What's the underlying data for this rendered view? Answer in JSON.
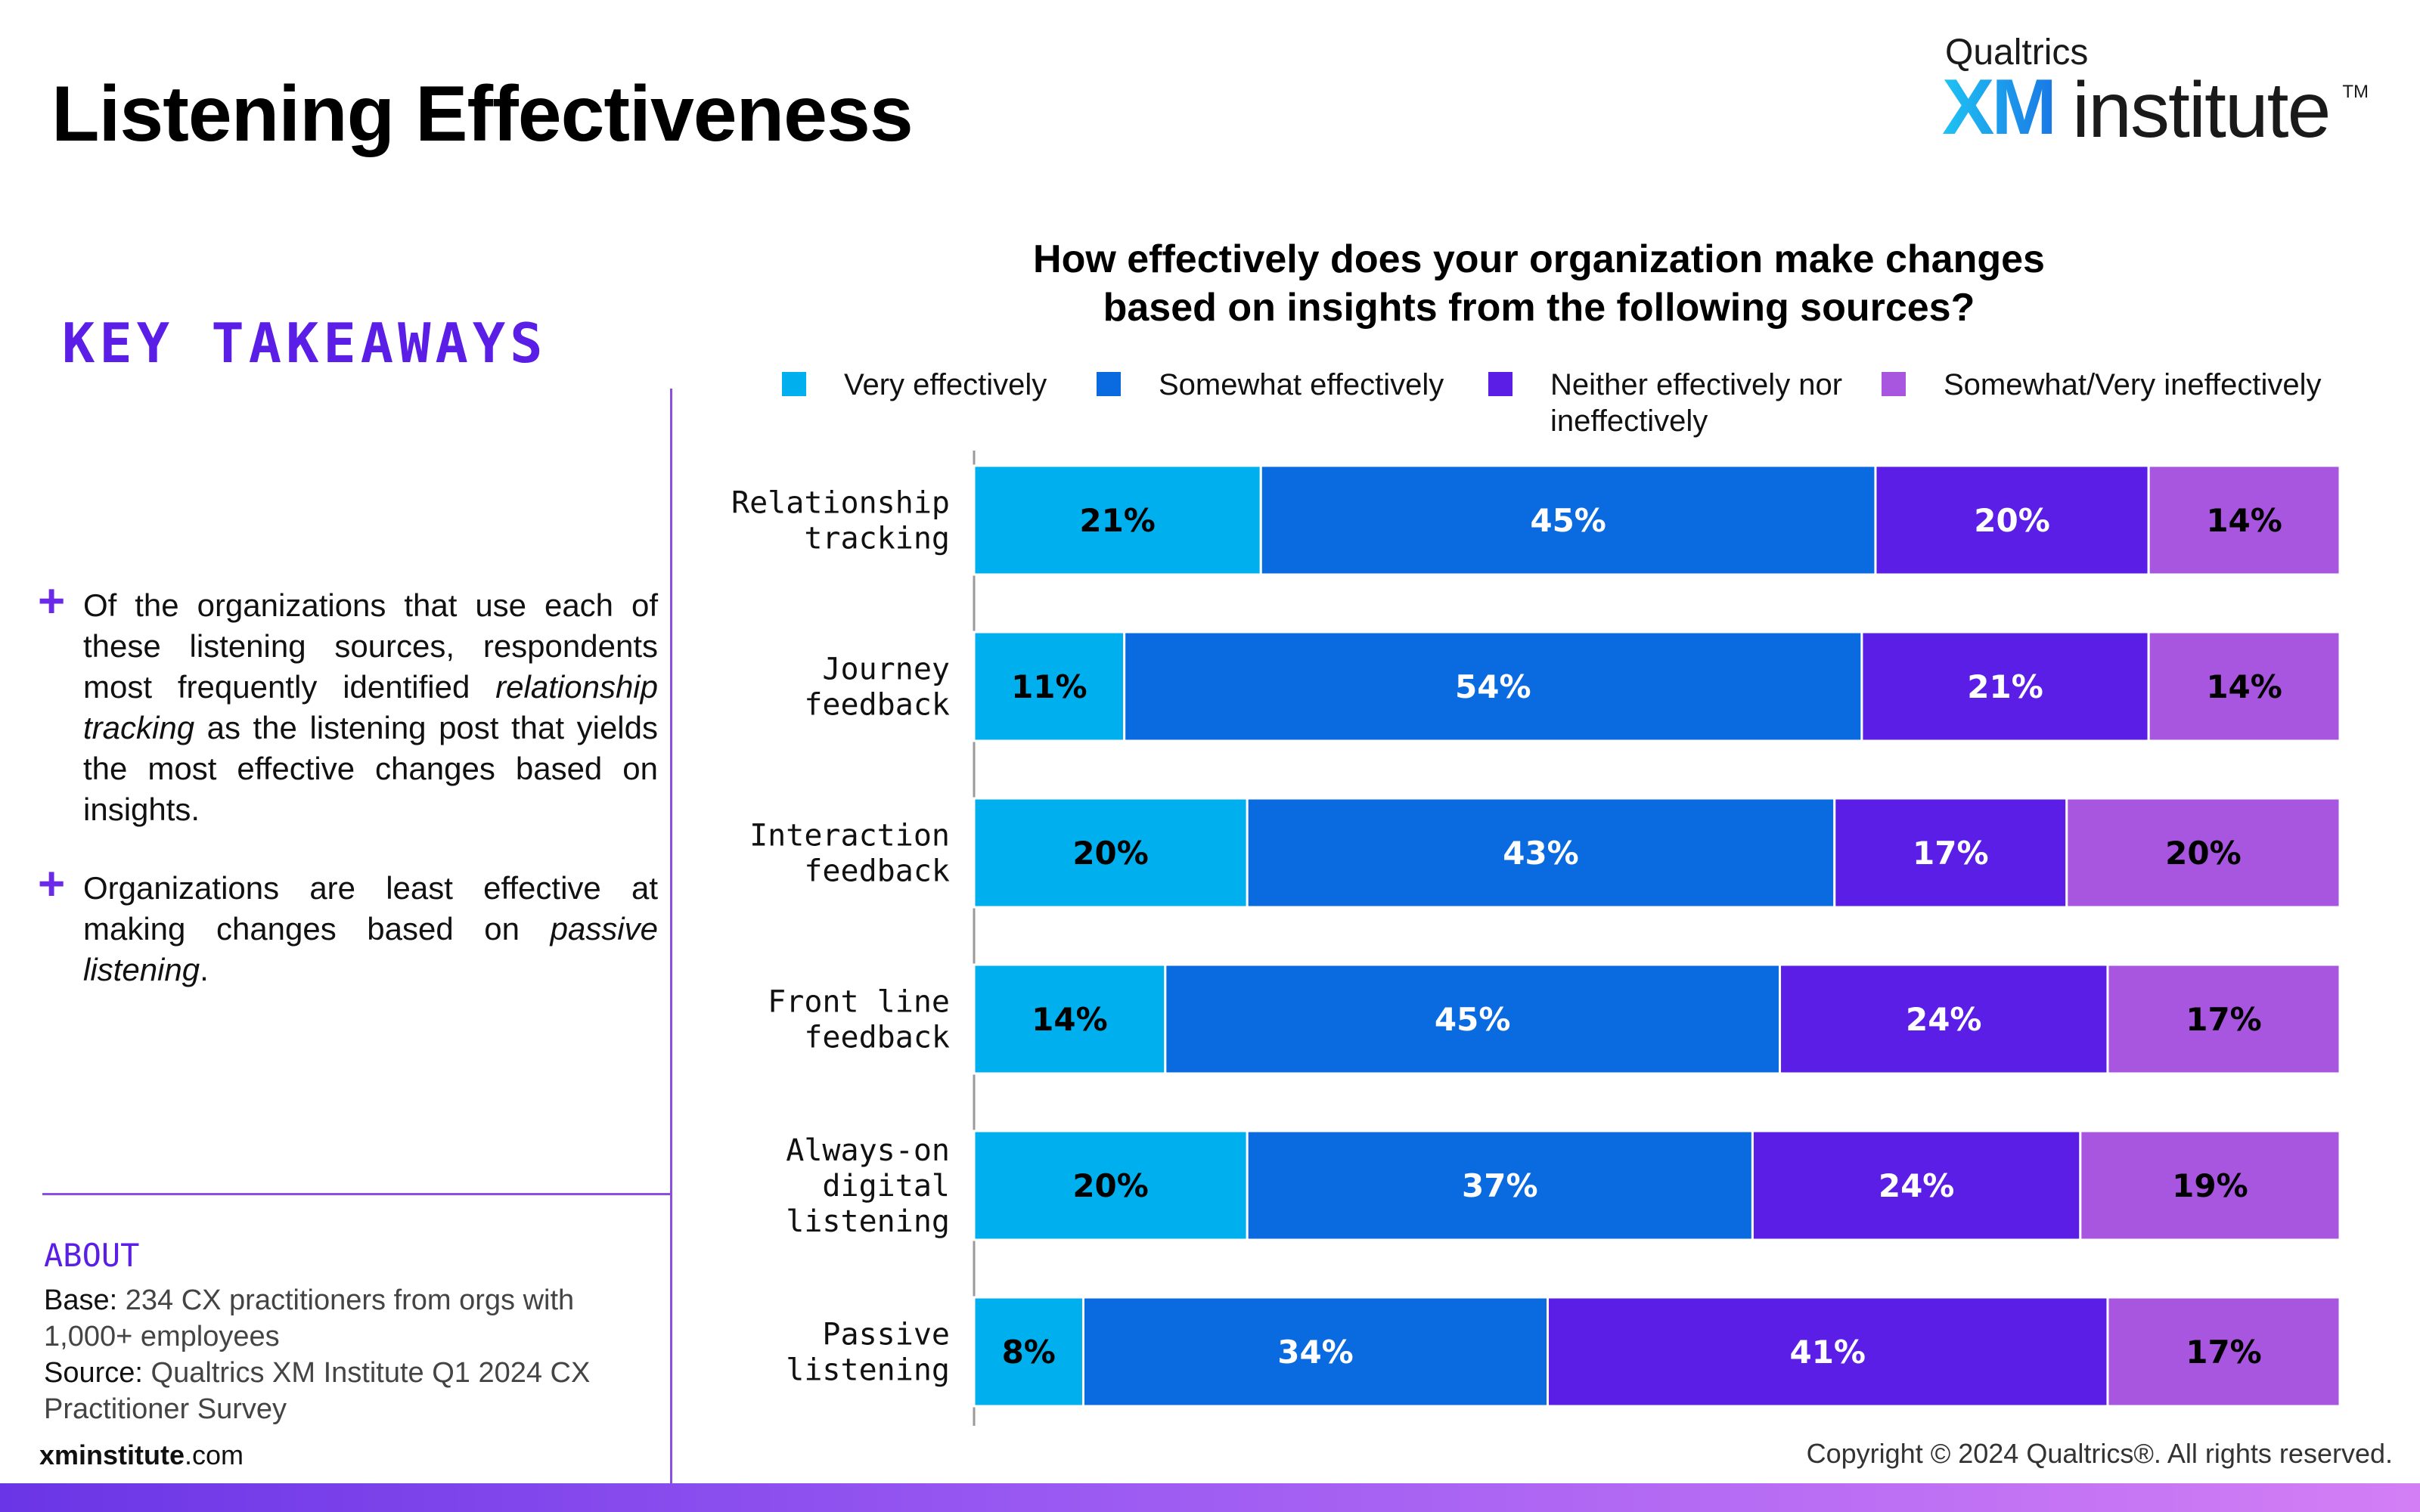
{
  "page": {
    "title": "Listening Effectiveness",
    "logo": {
      "line1": "Qualtrics",
      "xm": "XM",
      "institute": "institute",
      "tm": "TM"
    },
    "takeaways": {
      "heading": "KEY TAKEAWAYS",
      "items": [
        {
          "bullet": "+",
          "part1": "Of the organizations that use each of these listening sources, respondents most frequently identified ",
          "emph": "relationship tracking",
          "part2": " as the listening post that yields the most effective changes based on insights."
        },
        {
          "bullet": "+",
          "part1": "Organizations are least effective at making changes based on ",
          "emph": "passive listening",
          "part2": "."
        }
      ]
    },
    "about": {
      "heading": "ABOUT",
      "base_label": "Base:",
      "base_text": " 234 CX practitioners from orgs with 1,000+ employees",
      "source_label": "Source:",
      "source_text": " Qualtrics XM Institute Q1 2024 CX Practitioner Survey"
    },
    "footer": {
      "site_bold": "xminstitute",
      "site_rest": ".com",
      "copyright": "Copyright © 2024 Qualtrics®. All rights reserved."
    }
  },
  "chart_data": {
    "type": "bar",
    "orientation": "horizontal",
    "stacked": true,
    "title_lines": [
      "How effectively does your organization make changes",
      "based on insights from the following sources?"
    ],
    "xlim": [
      0,
      100
    ],
    "value_suffix": "%",
    "legend_position": "top",
    "categories": [
      [
        "Relationship",
        "tracking"
      ],
      [
        "Journey",
        "feedback"
      ],
      [
        "Interaction",
        "feedback"
      ],
      [
        "Front line",
        "feedback"
      ],
      [
        "Always-on",
        "digital",
        "listening"
      ],
      [
        "Passive",
        "listening"
      ]
    ],
    "series": [
      {
        "name_lines": [
          "Very effectively"
        ],
        "color": "#00b0ee",
        "label_color": "#000000",
        "values": [
          21,
          11,
          20,
          14,
          20,
          8
        ]
      },
      {
        "name_lines": [
          "Somewhat effectively"
        ],
        "color": "#0a6be0",
        "label_color": "#ffffff",
        "values": [
          45,
          54,
          43,
          45,
          37,
          34
        ]
      },
      {
        "name_lines": [
          "Neither effectively nor",
          "ineffectively"
        ],
        "color": "#5a1ee6",
        "label_color": "#ffffff",
        "values": [
          20,
          21,
          17,
          24,
          24,
          41
        ]
      },
      {
        "name_lines": [
          "Somewhat/Very ineffectively"
        ],
        "color": "#a855e0",
        "label_color": "#000000",
        "values": [
          14,
          14,
          20,
          17,
          19,
          17
        ]
      }
    ]
  }
}
